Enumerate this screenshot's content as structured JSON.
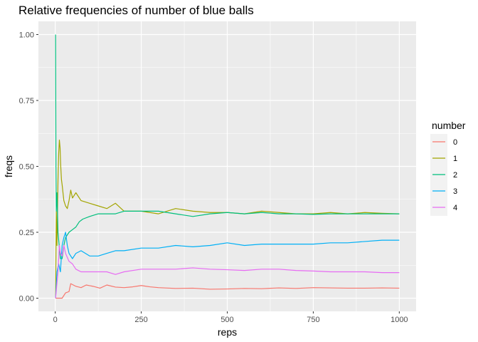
{
  "chart_data": {
    "type": "line",
    "title": "Relative frequencies of number of blue balls",
    "xlabel": "reps",
    "ylabel": "freqs",
    "xlim": [
      1,
      1000
    ],
    "ylim": [
      0,
      1
    ],
    "x_ticks": [
      0,
      250,
      500,
      750,
      1000
    ],
    "x_tick_labels": [
      "0",
      "250",
      "500",
      "750",
      "1000"
    ],
    "y_ticks": [
      0,
      0.25,
      0.5,
      0.75,
      1
    ],
    "y_tick_labels": [
      "0.00",
      "0.25",
      "0.50",
      "0.75",
      "1.00"
    ],
    "grid": true,
    "legend": {
      "title": "number",
      "position": "right"
    },
    "series": [
      {
        "name": "0",
        "color": "#F8766D",
        "points": [
          [
            1,
            0
          ],
          [
            20,
            0
          ],
          [
            30,
            0.02
          ],
          [
            40,
            0.025
          ],
          [
            45,
            0.055
          ],
          [
            60,
            0.045
          ],
          [
            75,
            0.04
          ],
          [
            90,
            0.05
          ],
          [
            110,
            0.045
          ],
          [
            130,
            0.038
          ],
          [
            150,
            0.05
          ],
          [
            175,
            0.042
          ],
          [
            200,
            0.04
          ],
          [
            225,
            0.043
          ],
          [
            250,
            0.048
          ],
          [
            275,
            0.043
          ],
          [
            300,
            0.04
          ],
          [
            350,
            0.037
          ],
          [
            400,
            0.038
          ],
          [
            450,
            0.034
          ],
          [
            500,
            0.035
          ],
          [
            550,
            0.037
          ],
          [
            600,
            0.036
          ],
          [
            650,
            0.039
          ],
          [
            700,
            0.037
          ],
          [
            750,
            0.04
          ],
          [
            800,
            0.039
          ],
          [
            850,
            0.038
          ],
          [
            900,
            0.038
          ],
          [
            950,
            0.039
          ],
          [
            1000,
            0.038
          ]
        ]
      },
      {
        "name": "1",
        "color": "#A3A500",
        "points": [
          [
            1,
            0
          ],
          [
            3,
            0.33
          ],
          [
            5,
            0.2
          ],
          [
            8,
            0.45
          ],
          [
            10,
            0.55
          ],
          [
            12,
            0.6
          ],
          [
            14,
            0.57
          ],
          [
            16,
            0.5
          ],
          [
            18,
            0.45
          ],
          [
            20,
            0.43
          ],
          [
            25,
            0.37
          ],
          [
            30,
            0.35
          ],
          [
            35,
            0.34
          ],
          [
            40,
            0.37
          ],
          [
            45,
            0.41
          ],
          [
            50,
            0.38
          ],
          [
            60,
            0.4
          ],
          [
            75,
            0.37
          ],
          [
            100,
            0.36
          ],
          [
            125,
            0.35
          ],
          [
            150,
            0.34
          ],
          [
            175,
            0.36
          ],
          [
            200,
            0.33
          ],
          [
            250,
            0.33
          ],
          [
            300,
            0.32
          ],
          [
            350,
            0.34
          ],
          [
            400,
            0.33
          ],
          [
            450,
            0.325
          ],
          [
            500,
            0.325
          ],
          [
            550,
            0.32
          ],
          [
            600,
            0.33
          ],
          [
            650,
            0.325
          ],
          [
            700,
            0.32
          ],
          [
            750,
            0.32
          ],
          [
            800,
            0.325
          ],
          [
            850,
            0.32
          ],
          [
            900,
            0.325
          ],
          [
            950,
            0.322
          ],
          [
            1000,
            0.32
          ]
        ]
      },
      {
        "name": "2",
        "color": "#00BF7D",
        "points": [
          [
            1,
            1
          ],
          [
            2,
            0.5
          ],
          [
            3,
            0.33
          ],
          [
            5,
            0.4
          ],
          [
            8,
            0.25
          ],
          [
            10,
            0.22
          ],
          [
            15,
            0.15
          ],
          [
            20,
            0.15
          ],
          [
            25,
            0.2
          ],
          [
            30,
            0.23
          ],
          [
            40,
            0.25
          ],
          [
            50,
            0.26
          ],
          [
            60,
            0.27
          ],
          [
            70,
            0.29
          ],
          [
            80,
            0.3
          ],
          [
            100,
            0.31
          ],
          [
            125,
            0.32
          ],
          [
            150,
            0.32
          ],
          [
            175,
            0.32
          ],
          [
            200,
            0.33
          ],
          [
            250,
            0.33
          ],
          [
            300,
            0.33
          ],
          [
            350,
            0.32
          ],
          [
            400,
            0.31
          ],
          [
            450,
            0.32
          ],
          [
            500,
            0.325
          ],
          [
            550,
            0.32
          ],
          [
            600,
            0.325
          ],
          [
            650,
            0.32
          ],
          [
            700,
            0.32
          ],
          [
            750,
            0.318
          ],
          [
            800,
            0.32
          ],
          [
            850,
            0.32
          ],
          [
            900,
            0.32
          ],
          [
            950,
            0.32
          ],
          [
            1000,
            0.32
          ]
        ]
      },
      {
        "name": "3",
        "color": "#00B0F6",
        "points": [
          [
            1,
            0
          ],
          [
            5,
            0.1
          ],
          [
            10,
            0.13
          ],
          [
            15,
            0.1
          ],
          [
            20,
            0.2
          ],
          [
            25,
            0.23
          ],
          [
            30,
            0.25
          ],
          [
            35,
            0.2
          ],
          [
            40,
            0.17
          ],
          [
            50,
            0.15
          ],
          [
            60,
            0.17
          ],
          [
            75,
            0.18
          ],
          [
            100,
            0.16
          ],
          [
            125,
            0.16
          ],
          [
            150,
            0.17
          ],
          [
            175,
            0.18
          ],
          [
            200,
            0.18
          ],
          [
            250,
            0.19
          ],
          [
            300,
            0.19
          ],
          [
            350,
            0.2
          ],
          [
            400,
            0.195
          ],
          [
            450,
            0.2
          ],
          [
            500,
            0.21
          ],
          [
            550,
            0.2
          ],
          [
            600,
            0.205
          ],
          [
            650,
            0.205
          ],
          [
            700,
            0.205
          ],
          [
            750,
            0.205
          ],
          [
            800,
            0.21
          ],
          [
            850,
            0.21
          ],
          [
            900,
            0.215
          ],
          [
            950,
            0.22
          ],
          [
            1000,
            0.22
          ]
        ]
      },
      {
        "name": "4",
        "color": "#E76BF3",
        "points": [
          [
            1,
            0
          ],
          [
            8,
            0.1
          ],
          [
            10,
            0.15
          ],
          [
            12,
            0.2
          ],
          [
            15,
            0.17
          ],
          [
            20,
            0.16
          ],
          [
            25,
            0.2
          ],
          [
            30,
            0.17
          ],
          [
            40,
            0.14
          ],
          [
            50,
            0.13
          ],
          [
            60,
            0.11
          ],
          [
            75,
            0.1
          ],
          [
            100,
            0.1
          ],
          [
            125,
            0.1
          ],
          [
            150,
            0.1
          ],
          [
            175,
            0.09
          ],
          [
            200,
            0.1
          ],
          [
            250,
            0.11
          ],
          [
            300,
            0.11
          ],
          [
            350,
            0.11
          ],
          [
            400,
            0.115
          ],
          [
            450,
            0.11
          ],
          [
            500,
            0.108
          ],
          [
            550,
            0.105
          ],
          [
            600,
            0.11
          ],
          [
            650,
            0.11
          ],
          [
            700,
            0.105
          ],
          [
            750,
            0.103
          ],
          [
            800,
            0.1
          ],
          [
            850,
            0.1
          ],
          [
            900,
            0.1
          ],
          [
            950,
            0.097
          ],
          [
            1000,
            0.097
          ]
        ]
      }
    ]
  }
}
